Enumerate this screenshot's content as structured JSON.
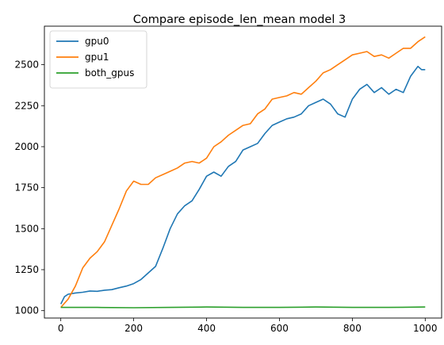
{
  "chart_data": {
    "type": "line",
    "title": "Compare episode_len_mean model 3",
    "xlabel": "",
    "ylabel": "",
    "xlim": [
      -45,
      1045
    ],
    "ylim": [
      955,
      2735
    ],
    "x_ticks": [
      0,
      200,
      400,
      600,
      800,
      1000
    ],
    "y_ticks": [
      1000,
      1250,
      1500,
      1750,
      2000,
      2250,
      2500
    ],
    "legend_position": "top-left",
    "grid": false,
    "series": [
      {
        "name": "gpu0",
        "color": "#1f77b4",
        "points": [
          [
            0,
            1040
          ],
          [
            10,
            1085
          ],
          [
            20,
            1100
          ],
          [
            40,
            1108
          ],
          [
            60,
            1112
          ],
          [
            80,
            1120
          ],
          [
            100,
            1118
          ],
          [
            120,
            1125
          ],
          [
            140,
            1128
          ],
          [
            160,
            1140
          ],
          [
            180,
            1150
          ],
          [
            200,
            1165
          ],
          [
            220,
            1190
          ],
          [
            240,
            1230
          ],
          [
            260,
            1270
          ],
          [
            280,
            1380
          ],
          [
            300,
            1500
          ],
          [
            320,
            1590
          ],
          [
            340,
            1640
          ],
          [
            360,
            1670
          ],
          [
            380,
            1740
          ],
          [
            400,
            1820
          ],
          [
            420,
            1845
          ],
          [
            440,
            1820
          ],
          [
            460,
            1880
          ],
          [
            480,
            1910
          ],
          [
            500,
            1980
          ],
          [
            520,
            2000
          ],
          [
            540,
            2020
          ],
          [
            560,
            2080
          ],
          [
            580,
            2130
          ],
          [
            600,
            2150
          ],
          [
            620,
            2170
          ],
          [
            640,
            2180
          ],
          [
            660,
            2200
          ],
          [
            680,
            2250
          ],
          [
            700,
            2270
          ],
          [
            720,
            2290
          ],
          [
            740,
            2260
          ],
          [
            760,
            2200
          ],
          [
            780,
            2180
          ],
          [
            800,
            2290
          ],
          [
            820,
            2350
          ],
          [
            840,
            2380
          ],
          [
            860,
            2330
          ],
          [
            880,
            2360
          ],
          [
            900,
            2320
          ],
          [
            920,
            2350
          ],
          [
            940,
            2330
          ],
          [
            960,
            2430
          ],
          [
            980,
            2490
          ],
          [
            990,
            2470
          ],
          [
            1000,
            2470
          ]
        ]
      },
      {
        "name": "gpu1",
        "color": "#ff7f0e",
        "points": [
          [
            0,
            1020
          ],
          [
            20,
            1070
          ],
          [
            40,
            1150
          ],
          [
            60,
            1260
          ],
          [
            80,
            1320
          ],
          [
            100,
            1360
          ],
          [
            120,
            1420
          ],
          [
            140,
            1520
          ],
          [
            160,
            1620
          ],
          [
            180,
            1730
          ],
          [
            200,
            1790
          ],
          [
            220,
            1770
          ],
          [
            240,
            1770
          ],
          [
            260,
            1810
          ],
          [
            280,
            1830
          ],
          [
            300,
            1850
          ],
          [
            320,
            1870
          ],
          [
            340,
            1900
          ],
          [
            360,
            1910
          ],
          [
            380,
            1900
          ],
          [
            400,
            1930
          ],
          [
            420,
            2000
          ],
          [
            440,
            2030
          ],
          [
            460,
            2070
          ],
          [
            480,
            2100
          ],
          [
            500,
            2130
          ],
          [
            520,
            2140
          ],
          [
            540,
            2200
          ],
          [
            560,
            2230
          ],
          [
            580,
            2290
          ],
          [
            600,
            2300
          ],
          [
            620,
            2310
          ],
          [
            640,
            2330
          ],
          [
            660,
            2320
          ],
          [
            680,
            2360
          ],
          [
            700,
            2400
          ],
          [
            720,
            2450
          ],
          [
            740,
            2470
          ],
          [
            760,
            2500
          ],
          [
            780,
            2530
          ],
          [
            800,
            2560
          ],
          [
            820,
            2570
          ],
          [
            840,
            2580
          ],
          [
            860,
            2550
          ],
          [
            880,
            2560
          ],
          [
            900,
            2540
          ],
          [
            920,
            2570
          ],
          [
            940,
            2600
          ],
          [
            960,
            2600
          ],
          [
            980,
            2640
          ],
          [
            1000,
            2670
          ]
        ]
      },
      {
        "name": "both_gpus",
        "color": "#2ca02c",
        "points": [
          [
            0,
            1020
          ],
          [
            100,
            1020
          ],
          [
            200,
            1018
          ],
          [
            300,
            1020
          ],
          [
            400,
            1022
          ],
          [
            500,
            1020
          ],
          [
            600,
            1020
          ],
          [
            700,
            1022
          ],
          [
            800,
            1020
          ],
          [
            900,
            1020
          ],
          [
            1000,
            1022
          ]
        ]
      }
    ]
  }
}
